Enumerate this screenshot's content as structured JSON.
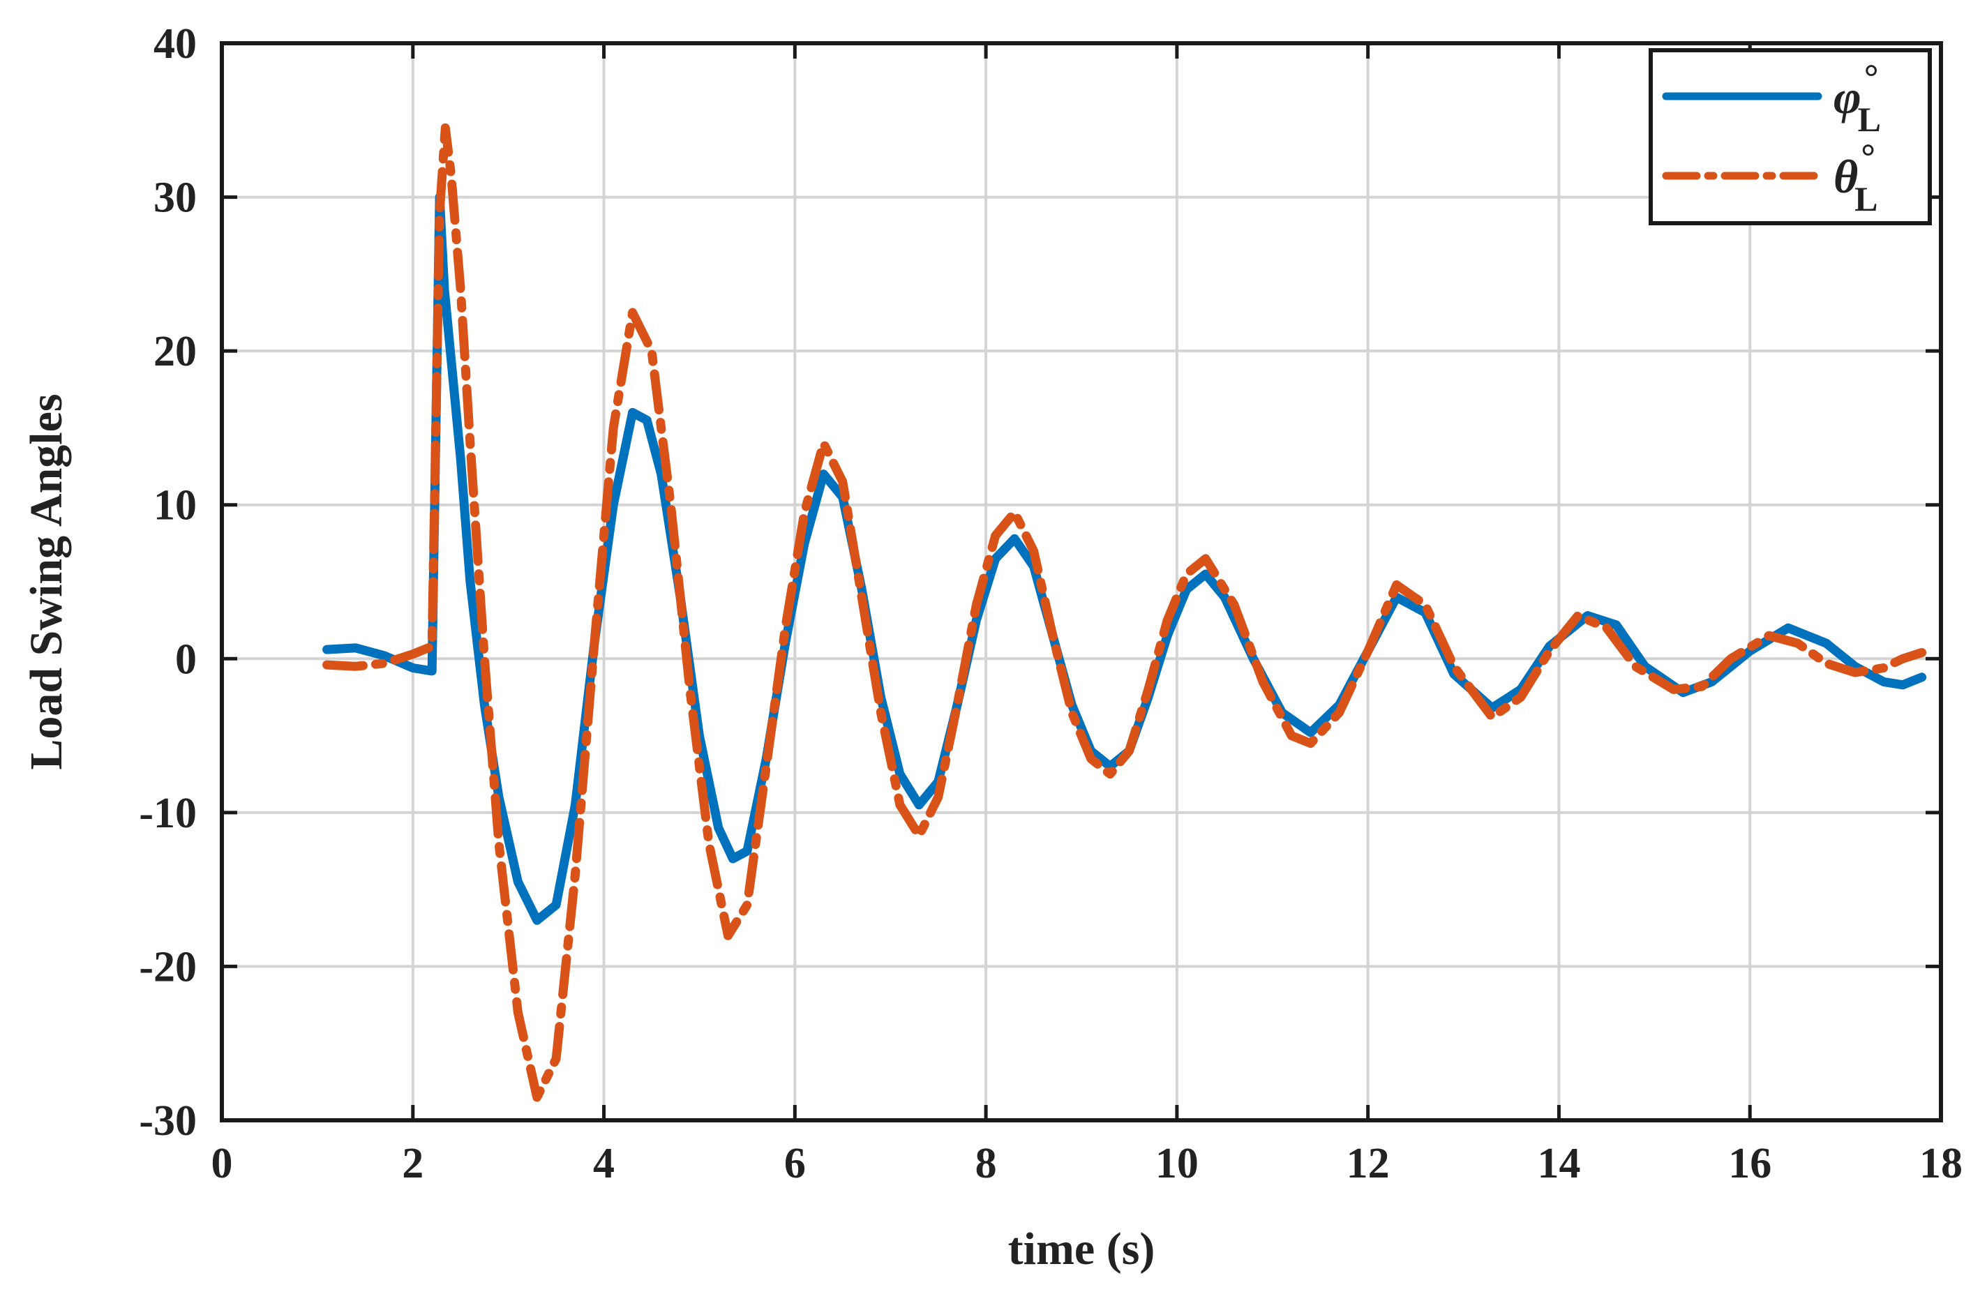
{
  "chart_data": {
    "type": "line",
    "xlabel": "time (s)",
    "ylabel": "Load Swing Angles",
    "xlim": [
      0,
      18
    ],
    "ylim": [
      -30,
      40
    ],
    "xticks": [
      0,
      2,
      4,
      6,
      8,
      10,
      12,
      14,
      16,
      18
    ],
    "yticks": [
      -30,
      -20,
      -10,
      0,
      10,
      20,
      30,
      40
    ],
    "grid": true,
    "legend_position": "top-right",
    "series": [
      {
        "name": "φ°L",
        "symbol": "φ",
        "subscript": "L",
        "superscript": "°",
        "color": "#0072BD",
        "style": "solid",
        "points": [
          [
            1.1,
            0.6
          ],
          [
            1.4,
            0.7
          ],
          [
            1.7,
            0.2
          ],
          [
            2.0,
            -0.6
          ],
          [
            2.2,
            -0.8
          ],
          [
            2.28,
            30.0
          ],
          [
            2.33,
            24.0
          ],
          [
            2.4,
            19.5
          ],
          [
            2.5,
            13.0
          ],
          [
            2.6,
            5.0
          ],
          [
            2.75,
            -3.0
          ],
          [
            2.9,
            -9.0
          ],
          [
            3.1,
            -14.5
          ],
          [
            3.3,
            -17.0
          ],
          [
            3.5,
            -16.0
          ],
          [
            3.7,
            -9.5
          ],
          [
            3.9,
            1.0
          ],
          [
            4.1,
            10.0
          ],
          [
            4.3,
            16.0
          ],
          [
            4.45,
            15.5
          ],
          [
            4.6,
            12.0
          ],
          [
            4.8,
            4.0
          ],
          [
            5.0,
            -5.0
          ],
          [
            5.2,
            -11.0
          ],
          [
            5.35,
            -13.0
          ],
          [
            5.5,
            -12.5
          ],
          [
            5.7,
            -6.5
          ],
          [
            5.9,
            1.0
          ],
          [
            6.1,
            7.5
          ],
          [
            6.3,
            12.0
          ],
          [
            6.5,
            10.5
          ],
          [
            6.7,
            4.5
          ],
          [
            6.9,
            -2.5
          ],
          [
            7.1,
            -7.5
          ],
          [
            7.3,
            -9.5
          ],
          [
            7.5,
            -8.0
          ],
          [
            7.7,
            -3.0
          ],
          [
            7.9,
            2.5
          ],
          [
            8.1,
            6.5
          ],
          [
            8.3,
            7.8
          ],
          [
            8.5,
            6.0
          ],
          [
            8.7,
            1.5
          ],
          [
            8.9,
            -3.0
          ],
          [
            9.1,
            -6.0
          ],
          [
            9.3,
            -7.0
          ],
          [
            9.5,
            -6.0
          ],
          [
            9.7,
            -2.5
          ],
          [
            9.9,
            1.5
          ],
          [
            10.1,
            4.5
          ],
          [
            10.3,
            5.5
          ],
          [
            10.5,
            4.0
          ],
          [
            10.8,
            0.0
          ],
          [
            11.1,
            -3.5
          ],
          [
            11.4,
            -4.8
          ],
          [
            11.7,
            -3.0
          ],
          [
            12.0,
            0.5
          ],
          [
            12.3,
            4.0
          ],
          [
            12.6,
            3.0
          ],
          [
            12.9,
            -1.0
          ],
          [
            13.3,
            -3.2
          ],
          [
            13.6,
            -2.0
          ],
          [
            13.9,
            0.8
          ],
          [
            14.3,
            2.8
          ],
          [
            14.6,
            2.2
          ],
          [
            14.9,
            -0.5
          ],
          [
            15.3,
            -2.2
          ],
          [
            15.6,
            -1.5
          ],
          [
            16.0,
            0.5
          ],
          [
            16.4,
            2.0
          ],
          [
            16.8,
            1.0
          ],
          [
            17.1,
            -0.5
          ],
          [
            17.4,
            -1.5
          ],
          [
            17.6,
            -1.7
          ],
          [
            17.8,
            -1.2
          ]
        ]
      },
      {
        "name": "θ°L",
        "symbol": "θ",
        "subscript": "L",
        "superscript": "°",
        "color": "#D95319",
        "style": "dashdot",
        "points": [
          [
            1.1,
            -0.4
          ],
          [
            1.4,
            -0.5
          ],
          [
            1.7,
            -0.3
          ],
          [
            2.0,
            0.3
          ],
          [
            2.2,
            0.8
          ],
          [
            2.28,
            29.0
          ],
          [
            2.34,
            34.5
          ],
          [
            2.4,
            31.5
          ],
          [
            2.5,
            24.0
          ],
          [
            2.6,
            14.0
          ],
          [
            2.75,
            0.0
          ],
          [
            2.9,
            -12.0
          ],
          [
            3.1,
            -23.0
          ],
          [
            3.3,
            -28.5
          ],
          [
            3.5,
            -26.0
          ],
          [
            3.7,
            -14.0
          ],
          [
            3.9,
            1.0
          ],
          [
            4.1,
            15.0
          ],
          [
            4.3,
            22.5
          ],
          [
            4.5,
            20.0
          ],
          [
            4.7,
            10.0
          ],
          [
            4.9,
            -2.0
          ],
          [
            5.1,
            -12.0
          ],
          [
            5.3,
            -18.0
          ],
          [
            5.5,
            -16.0
          ],
          [
            5.7,
            -7.0
          ],
          [
            5.9,
            2.0
          ],
          [
            6.1,
            9.5
          ],
          [
            6.3,
            14.0
          ],
          [
            6.5,
            11.5
          ],
          [
            6.7,
            4.0
          ],
          [
            6.9,
            -3.5
          ],
          [
            7.1,
            -9.5
          ],
          [
            7.3,
            -11.5
          ],
          [
            7.5,
            -9.0
          ],
          [
            7.7,
            -3.0
          ],
          [
            7.9,
            3.5
          ],
          [
            8.1,
            8.0
          ],
          [
            8.3,
            9.5
          ],
          [
            8.5,
            7.0
          ],
          [
            8.7,
            1.5
          ],
          [
            8.9,
            -3.5
          ],
          [
            9.1,
            -6.5
          ],
          [
            9.3,
            -7.5
          ],
          [
            9.5,
            -6.0
          ],
          [
            9.7,
            -2.0
          ],
          [
            9.9,
            2.5
          ],
          [
            10.1,
            5.5
          ],
          [
            10.3,
            6.5
          ],
          [
            10.6,
            3.5
          ],
          [
            10.9,
            -1.5
          ],
          [
            11.2,
            -5.0
          ],
          [
            11.4,
            -5.5
          ],
          [
            11.7,
            -3.5
          ],
          [
            12.0,
            0.5
          ],
          [
            12.3,
            4.8
          ],
          [
            12.6,
            3.5
          ],
          [
            12.9,
            -0.5
          ],
          [
            13.3,
            -3.8
          ],
          [
            13.6,
            -2.5
          ],
          [
            13.9,
            0.5
          ],
          [
            14.2,
            2.8
          ],
          [
            14.5,
            2.0
          ],
          [
            14.8,
            -0.5
          ],
          [
            15.2,
            -2.0
          ],
          [
            15.5,
            -1.8
          ],
          [
            15.8,
            0.0
          ],
          [
            16.2,
            1.5
          ],
          [
            16.5,
            1.0
          ],
          [
            16.8,
            -0.3
          ],
          [
            17.1,
            -0.9
          ],
          [
            17.4,
            -0.6
          ],
          [
            17.6,
            0.0
          ],
          [
            17.8,
            0.4
          ]
        ]
      }
    ]
  }
}
